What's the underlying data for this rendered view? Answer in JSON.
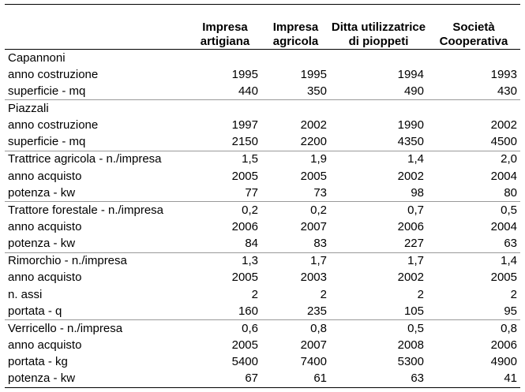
{
  "headers": [
    "",
    "Impresa artigiana",
    "Impresa agricola",
    "Ditta utilizzatrice di pioppeti",
    "Società Cooperativa"
  ],
  "groups": [
    {
      "rows": [
        {
          "label": "Capannoni",
          "values": [
            "",
            "",
            "",
            ""
          ]
        },
        {
          "label": "anno costruzione",
          "values": [
            "1995",
            "1995",
            "1994",
            "1993"
          ]
        },
        {
          "label": "superficie - mq",
          "values": [
            "440",
            "350",
            "490",
            "430"
          ]
        }
      ]
    },
    {
      "rows": [
        {
          "label": "Piazzali",
          "values": [
            "",
            "",
            "",
            ""
          ]
        },
        {
          "label": "anno costruzione",
          "values": [
            "1997",
            "2002",
            "1990",
            "2002"
          ]
        },
        {
          "label": "superficie - mq",
          "values": [
            "2150",
            "2200",
            "4350",
            "4500"
          ]
        }
      ]
    },
    {
      "rows": [
        {
          "label": "Trattrice agricola - n./impresa",
          "values": [
            "1,5",
            "1,9",
            "1,4",
            "2,0"
          ]
        },
        {
          "label": "anno acquisto",
          "values": [
            "2005",
            "2005",
            "2002",
            "2004"
          ]
        },
        {
          "label": "potenza - kw",
          "values": [
            "77",
            "73",
            "98",
            "80"
          ]
        }
      ]
    },
    {
      "rows": [
        {
          "label": "Trattore forestale - n./impresa",
          "values": [
            "0,2",
            "0,2",
            "0,7",
            "0,5"
          ]
        },
        {
          "label": "anno acquisto",
          "values": [
            "2006",
            "2007",
            "2006",
            "2004"
          ]
        },
        {
          "label": "potenza - kw",
          "values": [
            "84",
            "83",
            "227",
            "63"
          ]
        }
      ]
    },
    {
      "rows": [
        {
          "label": "Rimorchio - n./impresa",
          "values": [
            "1,3",
            "1,7",
            "1,7",
            "1,4"
          ]
        },
        {
          "label": "anno acquisto",
          "values": [
            "2005",
            "2003",
            "2002",
            "2005"
          ]
        },
        {
          "label": "n. assi",
          "values": [
            "2",
            "2",
            "2",
            "2"
          ]
        },
        {
          "label": "portata - q",
          "values": [
            "160",
            "235",
            "105",
            "95"
          ]
        }
      ]
    },
    {
      "rows": [
        {
          "label": "Verricello - n./impresa",
          "values": [
            "0,6",
            "0,8",
            "0,5",
            "0,8"
          ]
        },
        {
          "label": "anno acquisto",
          "values": [
            "2005",
            "2007",
            "2008",
            "2006"
          ]
        },
        {
          "label": "portata - kg",
          "values": [
            "5400",
            "7400",
            "5300",
            "4900"
          ]
        },
        {
          "label": "potenza - kw",
          "values": [
            "67",
            "61",
            "63",
            "41"
          ]
        }
      ]
    }
  ]
}
